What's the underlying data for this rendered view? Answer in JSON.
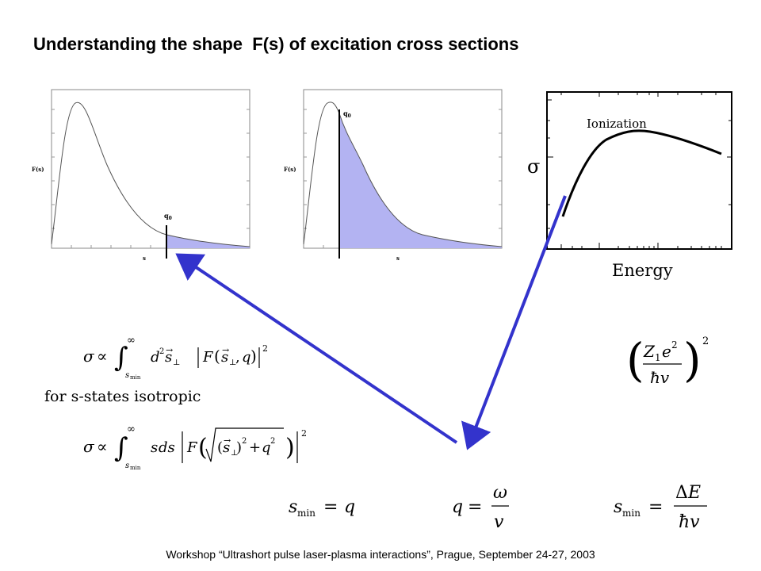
{
  "title": "Understanding the shape  F(s) of excitation cross sections",
  "footer": "Workshop “Ultrashort pulse laser-plasma interactions”, Prague, September 24-27, 2003",
  "plot_left": {
    "ylabel": "F(s)",
    "xlabel": "s",
    "marker": "q",
    "marker_sub": "0"
  },
  "plot_mid": {
    "ylabel": "F(s)",
    "xlabel": "s",
    "marker": "q",
    "marker_sub": "0"
  },
  "plot_right": {
    "curve_label": "Ionization",
    "ylabel": "σ",
    "xlabel": "Energy"
  },
  "text_s_states": "for s-states isotropic",
  "colors": {
    "shade": "#b3b3f2",
    "arrow": "#3333cc"
  }
}
